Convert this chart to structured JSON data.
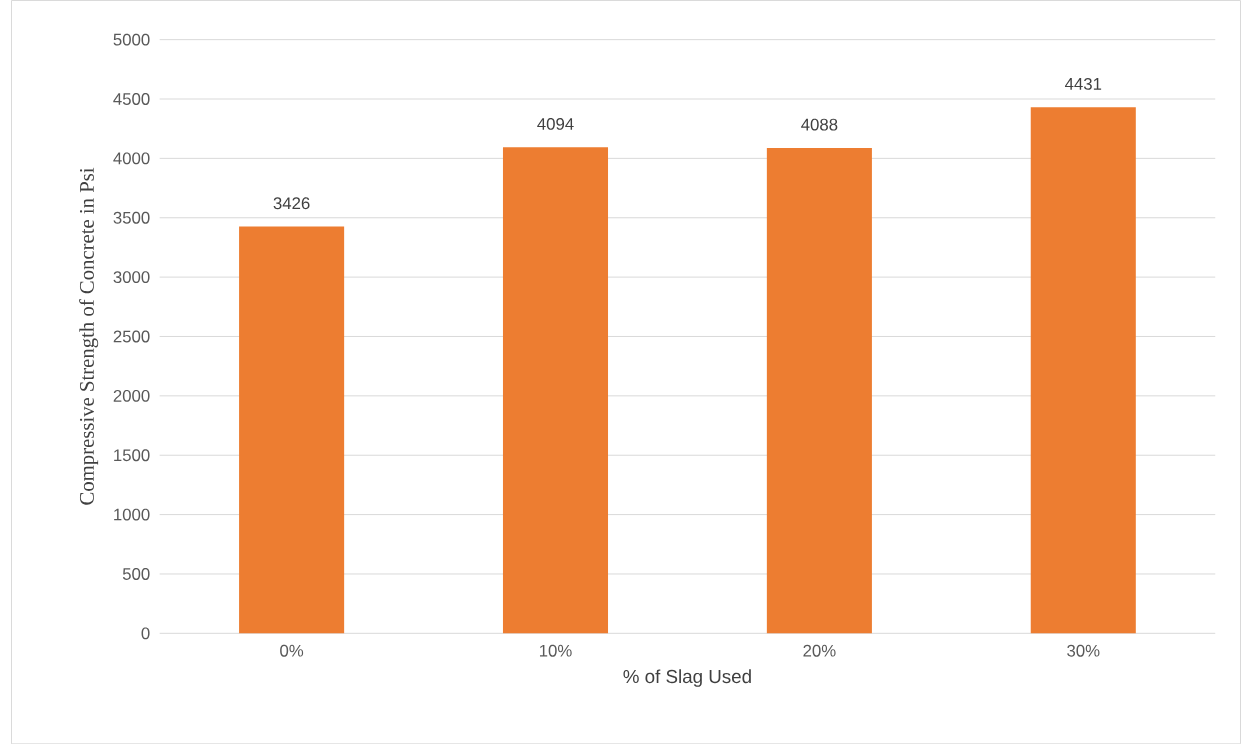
{
  "chart_data": {
    "type": "bar",
    "xlabel": "% of Slag Used",
    "ylabel": "Compressive Strength of Concrete in Psi",
    "categories": [
      "0%",
      "10%",
      "20%",
      "30%"
    ],
    "values": [
      3426,
      4094,
      4088,
      4431
    ],
    "color": "#ed7d31",
    "ylim": [
      0,
      5000
    ],
    "yticks": [
      0,
      500,
      1000,
      1500,
      2000,
      2500,
      3000,
      3500,
      4000,
      4500,
      5000
    ],
    "grid": "y",
    "data_labels": true
  }
}
